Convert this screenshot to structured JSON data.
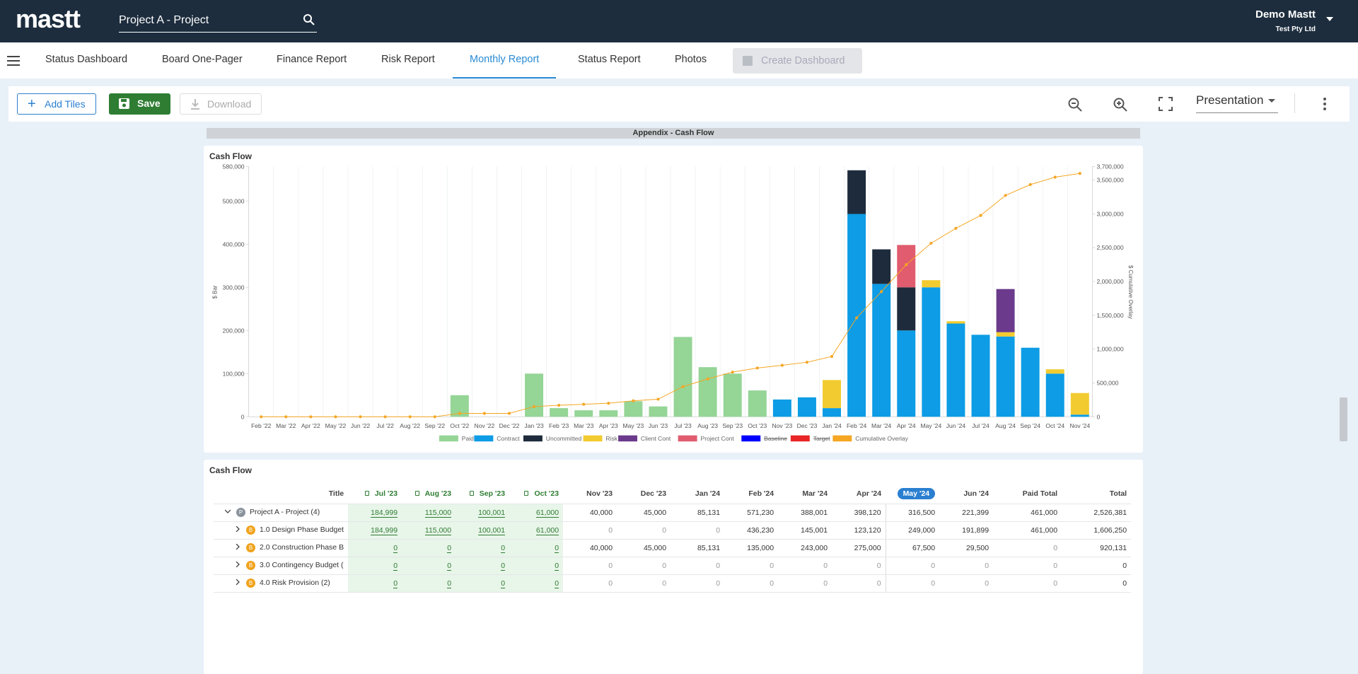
{
  "header": {
    "logo": "mastt",
    "search": "Project A - Project",
    "user": "Demo Mastt",
    "company": "Test Pty Ltd"
  },
  "tabs": {
    "items": [
      "Status Dashboard",
      "Board One-Pager",
      "Finance Report",
      "Risk Report",
      "Monthly Report",
      "Status Report",
      "Photos",
      "Create Dashboard"
    ],
    "active": 4,
    "disabled": 7
  },
  "toolbar": {
    "add": "Add Tiles",
    "save": "Save",
    "download": "Download",
    "view": "Presentation"
  },
  "banner": "Appendix - Cash Flow",
  "chart_card": {
    "title": "Cash Flow"
  },
  "chart_data": {
    "type": "bar",
    "stacked": true,
    "ylabel": "$ Bar",
    "y2label": "$ Cumulative Overlay",
    "categories": [
      "Feb '22",
      "Mar '22",
      "Apr '22",
      "May '22",
      "Jun '22",
      "Jul '22",
      "Aug '22",
      "Sep '22",
      "Oct '22",
      "Nov '22",
      "Dec '22",
      "Jan '23",
      "Feb '23",
      "Mar '23",
      "Apr '23",
      "May '23",
      "Jun '23",
      "Jul '23",
      "Aug '23",
      "Sep '23",
      "Oct '23",
      "Nov '23",
      "Dec '23",
      "Jan '24",
      "Feb '24",
      "Mar '24",
      "Apr '24",
      "May '24",
      "Jun '24",
      "Jul '24",
      "Aug '24",
      "Sep '24",
      "Oct '24",
      "Nov '24"
    ],
    "ylim": [
      0,
      580000
    ],
    "yticks": [
      0,
      {
        "value": 100000,
        "label": "100,000"
      },
      {
        "value": 200000,
        "label": "200,000"
      },
      {
        "value": 300000,
        "label": "300,000"
      },
      {
        "value": 400000,
        "label": "400,000"
      },
      {
        "value": 500000,
        "label": "500,000"
      },
      {
        "value": 580000,
        "label": "580,000"
      }
    ],
    "y2lim": [
      0,
      3700000
    ],
    "y2ticks": [
      0,
      {
        "value": 500000,
        "label": "500,000"
      },
      {
        "value": 1000000,
        "label": "1,000,000"
      },
      {
        "value": 1500000,
        "label": "1,500,000"
      },
      {
        "value": 2000000,
        "label": "2,000,000"
      },
      {
        "value": 2500000,
        "label": "2,500,000"
      },
      {
        "value": 3000000,
        "label": "3,000,000"
      },
      {
        "value": 3500000,
        "label": "3,500,000"
      },
      {
        "value": 3700000,
        "label": "3,700,000"
      }
    ],
    "series": [
      {
        "name": "Paid",
        "color": "#95d596",
        "type": "bar",
        "values": [
          0,
          0,
          0,
          0,
          0,
          0,
          0,
          0,
          50000,
          0,
          0,
          100000,
          20000,
          15000,
          15000,
          36000,
          24000,
          184999,
          115000,
          100001,
          61000,
          0,
          0,
          0,
          0,
          0,
          0,
          0,
          0,
          0,
          0,
          0,
          0,
          0
        ]
      },
      {
        "name": "Contract",
        "color": "#0d9ce5",
        "type": "bar",
        "values": [
          0,
          0,
          0,
          0,
          0,
          0,
          0,
          0,
          0,
          0,
          0,
          0,
          0,
          0,
          0,
          0,
          0,
          0,
          0,
          0,
          0,
          40000,
          45000,
          20000,
          470000,
          308000,
          200000,
          300000,
          216000,
          190000,
          186000,
          160000,
          100000,
          5000
        ]
      },
      {
        "name": "Uncommitted",
        "color": "#1e2b3c",
        "type": "bar",
        "values": [
          0,
          0,
          0,
          0,
          0,
          0,
          0,
          0,
          0,
          0,
          0,
          0,
          0,
          0,
          0,
          0,
          0,
          0,
          0,
          0,
          0,
          0,
          0,
          0,
          101230,
          80001,
          100000,
          0,
          0,
          0,
          0,
          0,
          0,
          0
        ]
      },
      {
        "name": "Risk",
        "color": "#f2cb30",
        "type": "bar",
        "values": [
          0,
          0,
          0,
          0,
          0,
          0,
          0,
          0,
          0,
          0,
          0,
          0,
          0,
          0,
          0,
          0,
          0,
          0,
          0,
          0,
          0,
          0,
          0,
          65131,
          0,
          0,
          0,
          16500,
          5399,
          0,
          10000,
          0,
          10000,
          50000
        ]
      },
      {
        "name": "Client Cont",
        "color": "#6b3a8c",
        "type": "bar",
        "values": [
          0,
          0,
          0,
          0,
          0,
          0,
          0,
          0,
          0,
          0,
          0,
          0,
          0,
          0,
          0,
          0,
          0,
          0,
          0,
          0,
          0,
          0,
          0,
          0,
          0,
          0,
          0,
          0,
          0,
          0,
          100000,
          0,
          0,
          0
        ]
      },
      {
        "name": "Project Cont",
        "color": "#e05c6e",
        "type": "bar",
        "values": [
          0,
          0,
          0,
          0,
          0,
          0,
          0,
          0,
          0,
          0,
          0,
          0,
          0,
          0,
          0,
          0,
          0,
          0,
          0,
          0,
          0,
          0,
          0,
          0,
          0,
          0,
          98120,
          0,
          0,
          0,
          0,
          0,
          0,
          0
        ]
      },
      {
        "name": "Baseline",
        "color": "#0000ff",
        "type": "line",
        "hidden": true
      },
      {
        "name": "Target",
        "color": "#e92525",
        "type": "line",
        "hidden": true
      },
      {
        "name": "Cumulative Overlay",
        "color": "#f5a623",
        "type": "line",
        "axis": "y2",
        "values": [
          0,
          0,
          0,
          0,
          0,
          0,
          0,
          0,
          50000,
          50000,
          50000,
          150000,
          170000,
          185000,
          200000,
          236000,
          260000,
          444999,
          559999,
          660000,
          721000,
          761000,
          806000,
          891131,
          1462361,
          1850362,
          2248482,
          2564982,
          2786381,
          2976381,
          3272381,
          3432381,
          3542381,
          3597381
        ]
      }
    ],
    "legend": "bottom"
  },
  "table_card": {
    "title": "Cash Flow"
  },
  "table": {
    "columns": [
      {
        "label": "Title"
      },
      {
        "label": "Jul '23",
        "locked": true
      },
      {
        "label": "Aug '23",
        "locked": true
      },
      {
        "label": "Sep '23",
        "locked": true
      },
      {
        "label": "Oct '23",
        "locked": true
      },
      {
        "label": "Nov '23"
      },
      {
        "label": "Dec '23"
      },
      {
        "label": "Jan '24"
      },
      {
        "label": "Feb '24"
      },
      {
        "label": "Mar '24"
      },
      {
        "label": "Apr '24"
      },
      {
        "label": "May '24",
        "current": true
      },
      {
        "label": "Jun '24"
      },
      {
        "label": "Paid Total"
      },
      {
        "label": "Total"
      }
    ],
    "rows": [
      {
        "badge": "P",
        "label": "Project A - Project (4)",
        "level": 0,
        "expanded": true,
        "values": [
          "184,999",
          "115,000",
          "100,001",
          "61,000",
          "40,000",
          "45,000",
          "85,131",
          "571,230",
          "388,001",
          "398,120",
          "316,500",
          "221,399",
          "461,000",
          "2,526,381"
        ]
      },
      {
        "badge": "B",
        "label": "1.0 Design Phase Budget",
        "level": 1,
        "values": [
          "184,999",
          "115,000",
          "100,001",
          "61,000",
          "0",
          "0",
          "0",
          "436,230",
          "145,001",
          "123,120",
          "249,000",
          "191,899",
          "461,000",
          "1,606,250"
        ]
      },
      {
        "badge": "B",
        "label": "2.0 Construction Phase B",
        "level": 1,
        "values": [
          "0",
          "0",
          "0",
          "0",
          "40,000",
          "45,000",
          "85,131",
          "135,000",
          "243,000",
          "275,000",
          "67,500",
          "29,500",
          "0",
          "920,131"
        ]
      },
      {
        "badge": "B",
        "label": "3.0 Contingency Budget (",
        "level": 1,
        "values": [
          "0",
          "0",
          "0",
          "0",
          "0",
          "0",
          "0",
          "0",
          "0",
          "0",
          "0",
          "0",
          "0",
          "0"
        ]
      },
      {
        "badge": "B",
        "label": "4.0 Risk Provision (2)",
        "level": 1,
        "values": [
          "0",
          "0",
          "0",
          "0",
          "0",
          "0",
          "0",
          "0",
          "0",
          "0",
          "0",
          "0",
          "0",
          "0"
        ]
      }
    ]
  }
}
